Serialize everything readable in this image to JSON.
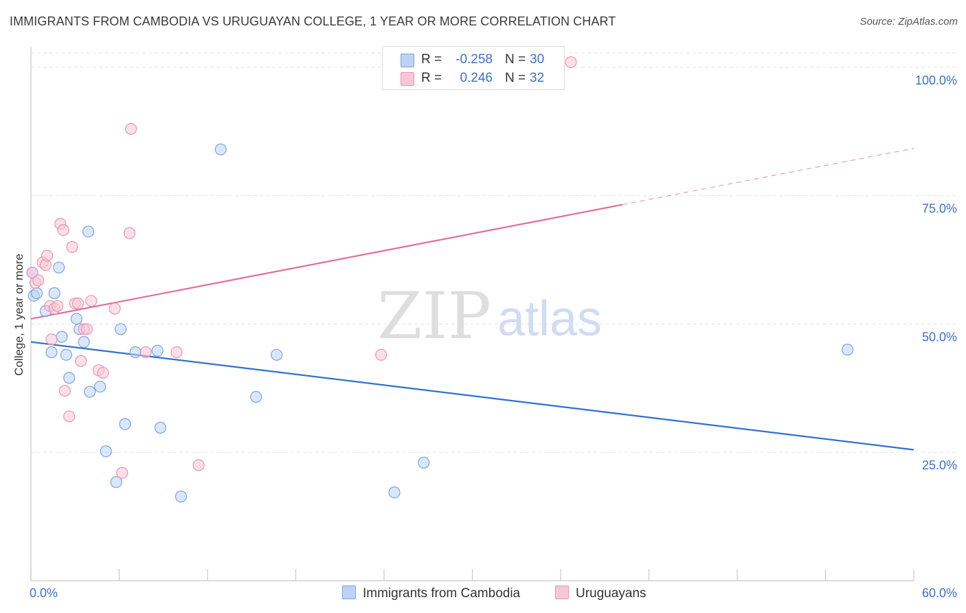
{
  "chart_data": {
    "type": "scatter",
    "title": "IMMIGRANTS FROM CAMBODIA VS URUGUAYAN COLLEGE, 1 YEAR OR MORE CORRELATION CHART",
    "source": "Source: ZipAtlas.com",
    "xlabel": "",
    "ylabel": "College, 1 year or more",
    "xlim": [
      0,
      60
    ],
    "ylim": [
      0,
      104
    ],
    "x_tick_labels": [
      "0.0%",
      "60.0%"
    ],
    "y_tick_labels": [
      "100.0%",
      "75.0%",
      "50.0%",
      "25.0%"
    ],
    "y_tick_values": [
      100,
      75,
      50,
      25
    ],
    "x_minor_ticks": [
      0,
      6,
      12,
      18,
      24,
      30,
      36,
      42,
      48,
      54,
      60
    ],
    "watermark": {
      "zip": "ZIP",
      "atlas": "atlas"
    },
    "colors": {
      "blue_fill": "#bcd3f5",
      "blue_stroke": "#7aa3e0",
      "blue_line": "#2f6fd0",
      "pink_fill": "#f8c6d6",
      "pink_stroke": "#eb94b0",
      "pink_line": "#e06e98",
      "tick_label": "#3b6fd4",
      "grid": "#e3e3e3"
    },
    "legend": [
      {
        "r_label": "R =",
        "r_value": "-0.258",
        "n_label": "N =",
        "n_value": "30"
      },
      {
        "r_label": "R =",
        "r_value": "0.246",
        "n_label": "N =",
        "n_value": "32"
      }
    ],
    "series": [
      {
        "name": "Immigrants from Cambodia",
        "color": "blue",
        "trend": {
          "x0": 0,
          "y0": 46.5,
          "x1": 60,
          "y1": 25.5,
          "solid_to": 60
        },
        "points": [
          [
            0.1,
            60.0
          ],
          [
            0.2,
            55.5
          ],
          [
            0.4,
            56.0
          ],
          [
            1.0,
            52.5
          ],
          [
            1.4,
            44.5
          ],
          [
            1.6,
            56.0
          ],
          [
            1.9,
            61.0
          ],
          [
            2.1,
            47.5
          ],
          [
            2.4,
            44.0
          ],
          [
            2.6,
            39.5
          ],
          [
            3.1,
            51.0
          ],
          [
            3.3,
            49.0
          ],
          [
            3.6,
            46.5
          ],
          [
            3.9,
            68.0
          ],
          [
            4.0,
            36.8
          ],
          [
            4.7,
            37.8
          ],
          [
            5.1,
            25.2
          ],
          [
            5.8,
            19.2
          ],
          [
            6.1,
            49.0
          ],
          [
            6.4,
            30.5
          ],
          [
            7.1,
            44.5
          ],
          [
            8.6,
            44.8
          ],
          [
            8.8,
            29.8
          ],
          [
            10.2,
            16.4
          ],
          [
            12.9,
            84.0
          ],
          [
            15.3,
            35.8
          ],
          [
            16.7,
            44.0
          ],
          [
            24.7,
            17.2
          ],
          [
            26.7,
            23.0
          ],
          [
            55.5,
            45.0
          ]
        ]
      },
      {
        "name": "Uruguayans",
        "color": "pink",
        "trend": {
          "x0": 0,
          "y0": 51.0,
          "x1": 60,
          "y1": 84.2,
          "solid_to": 40.2
        },
        "points": [
          [
            0.1,
            60.0
          ],
          [
            0.3,
            58.0
          ],
          [
            0.5,
            58.5
          ],
          [
            0.8,
            62.0
          ],
          [
            1.0,
            61.5
          ],
          [
            1.1,
            63.3
          ],
          [
            1.3,
            53.5
          ],
          [
            1.4,
            47.0
          ],
          [
            1.6,
            53.0
          ],
          [
            1.8,
            53.5
          ],
          [
            2.0,
            69.5
          ],
          [
            2.2,
            68.3
          ],
          [
            2.3,
            37.0
          ],
          [
            2.6,
            32.0
          ],
          [
            2.8,
            65.0
          ],
          [
            3.0,
            54.0
          ],
          [
            3.2,
            54.0
          ],
          [
            3.4,
            42.8
          ],
          [
            3.6,
            49.0
          ],
          [
            3.8,
            49.0
          ],
          [
            4.1,
            54.5
          ],
          [
            4.6,
            41.0
          ],
          [
            4.9,
            40.5
          ],
          [
            5.7,
            53.0
          ],
          [
            6.2,
            21.0
          ],
          [
            6.7,
            67.7
          ],
          [
            6.8,
            88.0
          ],
          [
            7.8,
            44.5
          ],
          [
            9.9,
            44.5
          ],
          [
            11.4,
            22.5
          ],
          [
            23.8,
            44.0
          ],
          [
            36.7,
            101.0
          ]
        ]
      }
    ]
  }
}
